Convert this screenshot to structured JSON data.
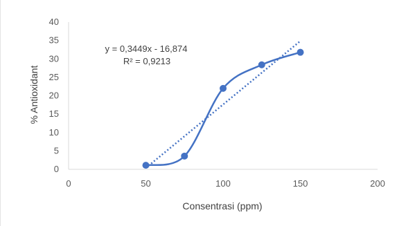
{
  "chart_data": {
    "type": "scatter",
    "title": "",
    "xlabel": "Consentrasi (ppm)",
    "ylabel": "% Antioxidant",
    "xlim": [
      0,
      200
    ],
    "ylim": [
      0,
      40
    ],
    "x_ticks": [
      "0",
      "50",
      "100",
      "150",
      "200"
    ],
    "y_ticks": [
      "0",
      "5",
      "10",
      "15",
      "20",
      "25",
      "30",
      "35",
      "40"
    ],
    "grid": false,
    "series": [
      {
        "points": [
          {
            "x": 50,
            "y": 1.1
          },
          {
            "x": 75,
            "y": 3.6
          },
          {
            "x": 100,
            "y": 22.0
          },
          {
            "x": 125,
            "y": 28.4
          },
          {
            "x": 150,
            "y": 31.8
          }
        ],
        "color": "#4472c4",
        "line": "smooth"
      }
    ],
    "trendline": {
      "type": "linear",
      "slope": 0.3449,
      "intercept": -16.874,
      "x_range": [
        50,
        150
      ],
      "color": "#4472c4",
      "style": "dotted",
      "equation_label": "y = 0,3449x - 16,874",
      "r2_label": "R² = 0,9213"
    }
  }
}
